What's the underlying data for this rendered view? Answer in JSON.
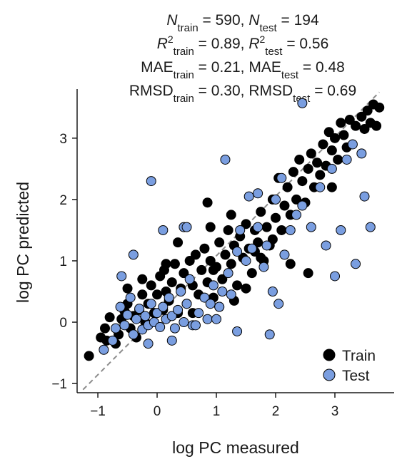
{
  "chart_data": {
    "type": "scatter",
    "stats": {
      "n_train": "590",
      "n_test": "194",
      "r2_train": "0.89",
      "r2_test": "0.56",
      "mae_train": "0.21",
      "mae_test": "0.48",
      "rmsd_train": "0.30",
      "rmsd_test": "0.69"
    },
    "labels": {
      "N": "N",
      "R": "R",
      "MAE": "MAE",
      "RMSD": "RMSD",
      "sub_train": "train",
      "sub_test": "test",
      "sup_2": "2",
      "eq": " = ",
      "comma": ", "
    },
    "xlabel": "log PC measured",
    "ylabel": "log PC predicted",
    "xlim": [
      -1.35,
      4.0
    ],
    "ylim": [
      -1.15,
      3.8
    ],
    "xticks": [
      -1,
      0,
      1,
      2,
      3
    ],
    "yticks": [
      -1,
      0,
      1,
      2,
      3
    ],
    "xtick_labels": [
      "−1",
      "0",
      "1",
      "2",
      "3"
    ],
    "ytick_labels": [
      "−1",
      "0",
      "1",
      "2",
      "3"
    ],
    "identity_line": true,
    "legend": {
      "position": "bottom-right",
      "entries": [
        "Train",
        "Test"
      ]
    },
    "colors": {
      "train": "#000000",
      "test": "#7a9ee0",
      "identity": "#8c8c8c"
    },
    "series": [
      {
        "name": "Train",
        "points": [
          [
            -1.15,
            -0.55
          ],
          [
            -0.95,
            -0.25
          ],
          [
            -0.88,
            -0.1
          ],
          [
            -0.8,
            0.08
          ],
          [
            -0.85,
            -0.3
          ],
          [
            -0.7,
            -0.35
          ],
          [
            -0.65,
            -0.2
          ],
          [
            -0.6,
            0.05
          ],
          [
            -0.55,
            0.18
          ],
          [
            -0.5,
            0.3
          ],
          [
            -0.45,
            -0.1
          ],
          [
            -0.4,
            0.1
          ],
          [
            -0.35,
            -0.25
          ],
          [
            -0.3,
            0.2
          ],
          [
            -0.25,
            0.45
          ],
          [
            -0.2,
            0.0
          ],
          [
            -0.15,
            0.3
          ],
          [
            -0.1,
            0.6
          ],
          [
            -0.05,
            0.15
          ],
          [
            0.0,
            0.45
          ],
          [
            0.05,
            0.75
          ],
          [
            0.1,
            0.2
          ],
          [
            0.12,
            0.85
          ],
          [
            0.15,
            0.5
          ],
          [
            0.2,
            0.35
          ],
          [
            0.25,
            0.65
          ],
          [
            0.3,
            0.95
          ],
          [
            0.35,
            0.15
          ],
          [
            0.4,
            0.55
          ],
          [
            0.45,
            0.8
          ],
          [
            0.5,
            0.3
          ],
          [
            0.55,
            1.0
          ],
          [
            0.6,
            0.6
          ],
          [
            0.65,
            1.1
          ],
          [
            0.7,
            0.45
          ],
          [
            0.75,
            0.85
          ],
          [
            0.8,
            1.2
          ],
          [
            0.85,
            0.65
          ],
          [
            0.9,
            1.0
          ],
          [
            0.95,
            0.4
          ],
          [
            1.0,
            0.9
          ],
          [
            1.05,
            1.3
          ],
          [
            1.1,
            0.7
          ],
          [
            1.15,
            1.1
          ],
          [
            1.2,
            1.5
          ],
          [
            1.25,
            0.95
          ],
          [
            1.3,
            1.25
          ],
          [
            1.35,
            0.6
          ],
          [
            1.4,
            1.4
          ],
          [
            1.45,
            1.05
          ],
          [
            1.5,
            1.6
          ],
          [
            1.55,
            1.2
          ],
          [
            1.6,
            0.8
          ],
          [
            1.65,
            1.5
          ],
          [
            1.7,
            1.3
          ],
          [
            1.75,
            1.8
          ],
          [
            1.8,
            1.0
          ],
          [
            1.85,
            1.55
          ],
          [
            1.9,
            1.25
          ],
          [
            1.95,
            2.0
          ],
          [
            2.0,
            1.7
          ],
          [
            2.05,
            2.35
          ],
          [
            2.1,
            1.5
          ],
          [
            2.15,
            1.9
          ],
          [
            2.2,
            2.2
          ],
          [
            2.25,
            1.75
          ],
          [
            2.3,
            2.45
          ],
          [
            2.35,
            2.0
          ],
          [
            2.4,
            2.65
          ],
          [
            2.45,
            2.3
          ],
          [
            2.5,
            1.95
          ],
          [
            2.55,
            2.5
          ],
          [
            2.6,
            2.75
          ],
          [
            2.65,
            2.2
          ],
          [
            2.7,
            2.6
          ],
          [
            2.75,
            2.4
          ],
          [
            2.8,
            2.9
          ],
          [
            2.85,
            2.55
          ],
          [
            2.9,
            3.1
          ],
          [
            2.95,
            2.8
          ],
          [
            3.0,
            3.0
          ],
          [
            3.05,
            2.65
          ],
          [
            3.1,
            3.25
          ],
          [
            3.15,
            3.05
          ],
          [
            3.2,
            2.85
          ],
          [
            3.25,
            3.3
          ],
          [
            3.35,
            3.2
          ],
          [
            3.45,
            3.35
          ],
          [
            3.5,
            3.15
          ],
          [
            3.55,
            3.45
          ],
          [
            3.6,
            3.25
          ],
          [
            3.65,
            3.55
          ],
          [
            3.75,
            3.5
          ],
          [
            3.7,
            3.2
          ],
          [
            2.55,
            0.8
          ],
          [
            2.95,
            2.2
          ],
          [
            1.65,
            1.15
          ],
          [
            0.9,
            1.55
          ],
          [
            1.25,
            1.75
          ],
          [
            0.85,
            1.95
          ],
          [
            1.5,
            0.55
          ],
          [
            0.35,
            1.3
          ],
          [
            0.95,
            0.85
          ],
          [
            1.95,
            1.35
          ],
          [
            2.25,
            0.95
          ],
          [
            1.05,
            0.25
          ],
          [
            0.15,
            0.95
          ],
          [
            -0.25,
            0.7
          ],
          [
            -0.5,
            0.55
          ],
          [
            0.6,
            0.15
          ],
          [
            1.3,
            0.35
          ],
          [
            1.75,
            1.05
          ]
        ]
      },
      {
        "name": "Test",
        "points": [
          [
            -0.9,
            -0.45
          ],
          [
            -0.75,
            -0.3
          ],
          [
            -0.7,
            -0.1
          ],
          [
            -0.62,
            0.25
          ],
          [
            -0.55,
            -0.05
          ],
          [
            -0.5,
            0.12
          ],
          [
            -0.45,
            0.4
          ],
          [
            -0.4,
            -0.2
          ],
          [
            -0.35,
            0.05
          ],
          [
            -0.3,
            0.22
          ],
          [
            -0.25,
            -0.12
          ],
          [
            -0.2,
            0.1
          ],
          [
            -0.15,
            -0.05
          ],
          [
            -0.1,
            0.3
          ],
          [
            -0.05,
            0.0
          ],
          [
            0.0,
            0.15
          ],
          [
            0.05,
            -0.08
          ],
          [
            0.1,
            0.25
          ],
          [
            0.15,
            0.05
          ],
          [
            0.2,
            0.4
          ],
          [
            0.25,
            0.1
          ],
          [
            0.3,
            -0.1
          ],
          [
            0.35,
            0.2
          ],
          [
            0.4,
            0.5
          ],
          [
            0.45,
            0.0
          ],
          [
            0.5,
            0.3
          ],
          [
            0.55,
            0.7
          ],
          [
            0.6,
            -0.05
          ],
          [
            0.7,
            0.15
          ],
          [
            0.8,
            0.4
          ],
          [
            0.85,
            0.05
          ],
          [
            0.9,
            0.3
          ],
          [
            0.95,
            0.6
          ],
          [
            1.05,
            0.25
          ],
          [
            1.1,
            0.5
          ],
          [
            1.2,
            0.8
          ],
          [
            1.25,
            0.45
          ],
          [
            1.35,
            1.15
          ],
          [
            1.4,
            1.5
          ],
          [
            1.5,
            1.0
          ],
          [
            1.6,
            1.2
          ],
          [
            1.7,
            1.55
          ],
          [
            1.8,
            0.9
          ],
          [
            1.85,
            1.25
          ],
          [
            1.95,
            0.5
          ],
          [
            2.05,
            0.3
          ],
          [
            2.15,
            1.1
          ],
          [
            2.25,
            1.5
          ],
          [
            2.35,
            1.75
          ],
          [
            2.45,
            1.9
          ],
          [
            2.6,
            1.55
          ],
          [
            2.75,
            2.2
          ],
          [
            2.85,
            1.25
          ],
          [
            2.95,
            2.5
          ],
          [
            3.0,
            0.75
          ],
          [
            3.1,
            1.5
          ],
          [
            3.2,
            2.65
          ],
          [
            3.3,
            2.9
          ],
          [
            3.35,
            0.95
          ],
          [
            3.45,
            2.75
          ],
          [
            3.5,
            2.05
          ],
          [
            3.6,
            1.55
          ],
          [
            2.45,
            3.57
          ],
          [
            1.15,
            2.65
          ],
          [
            -0.1,
            2.3
          ],
          [
            0.1,
            1.5
          ],
          [
            0.45,
            1.55
          ],
          [
            0.5,
            1.55
          ],
          [
            -0.4,
            1.1
          ],
          [
            -0.6,
            0.75
          ],
          [
            1.35,
            -0.15
          ],
          [
            1.55,
            2.05
          ],
          [
            1.7,
            2.1
          ],
          [
            2.0,
            2.0
          ],
          [
            2.1,
            2.35
          ],
          [
            0.65,
            -0.05
          ],
          [
            0.25,
            -0.3
          ],
          [
            -0.15,
            -0.35
          ],
          [
            1.0,
            0.05
          ],
          [
            1.9,
            -0.2
          ]
        ]
      }
    ]
  }
}
